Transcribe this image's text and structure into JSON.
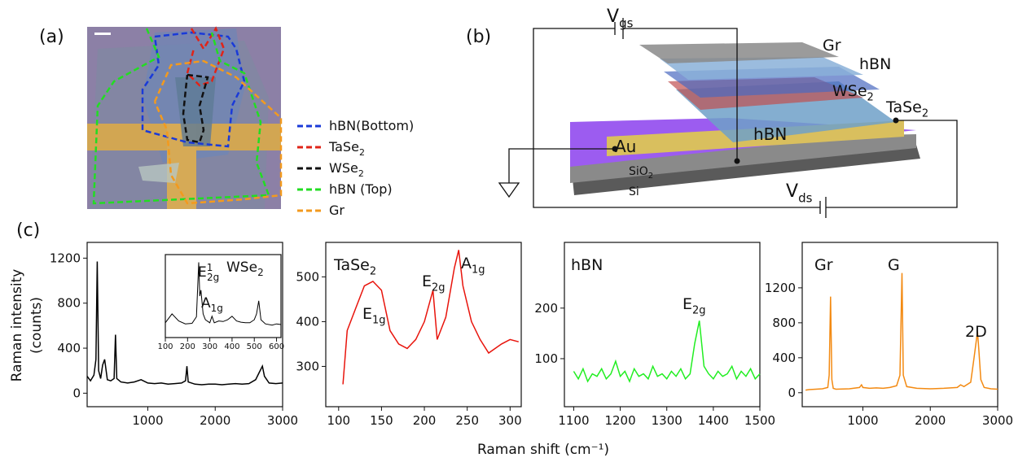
{
  "panel_labels": [
    "(a)",
    "(b)",
    "(c)"
  ],
  "panel_a": {
    "legend": [
      {
        "text": "hBN(Bottom)",
        "color": "#1a3ad8"
      },
      {
        "text": "TaSe",
        "sub": "2",
        "color": "#e02418"
      },
      {
        "text": "WSe",
        "sub": "2",
        "color": "#111111"
      },
      {
        "text": "hBN (Top)",
        "color": "#22dd22"
      },
      {
        "text": "Gr",
        "color": "#f39a1e"
      }
    ]
  },
  "panel_b": {
    "labels": [
      {
        "text": "V",
        "sub": "gs"
      },
      {
        "text": "Gr"
      },
      {
        "text": "hBN"
      },
      {
        "text": "WSe",
        "sub": "2"
      },
      {
        "text": "TaSe",
        "sub": "2"
      },
      {
        "text": "Au"
      },
      {
        "text": "hBN"
      },
      {
        "text": "SiO",
        "sub": "2"
      },
      {
        "text": "Si"
      },
      {
        "text": "V",
        "sub": "ds"
      }
    ]
  },
  "ylabel": [
    "Raman intensity",
    "(counts)"
  ],
  "xlabel": "Raman shift (cm⁻¹)",
  "chart_data": [
    {
      "type": "line",
      "xlim": [
        100,
        3000
      ],
      "ylim": [
        -120,
        1340
      ],
      "xticks": [
        1000,
        2000,
        3000
      ],
      "yticks": [
        0,
        400,
        800,
        1200
      ],
      "x": [
        100,
        150,
        200,
        230,
        250,
        270,
        300,
        330,
        360,
        400,
        450,
        500,
        520,
        540,
        600,
        700,
        800,
        900,
        1000,
        1100,
        1200,
        1300,
        1400,
        1500,
        1560,
        1580,
        1600,
        1700,
        1800,
        1900,
        2000,
        2100,
        2200,
        2300,
        2400,
        2500,
        2600,
        2650,
        2700,
        2730,
        2800,
        2900,
        3000
      ],
      "series": [
        {
          "color": "#000000",
          "values": [
            150,
            110,
            160,
            300,
            1170,
            200,
            130,
            250,
            300,
            120,
            110,
            130,
            520,
            130,
            100,
            90,
            100,
            120,
            90,
            85,
            90,
            80,
            85,
            90,
            110,
            240,
            100,
            80,
            75,
            80,
            80,
            75,
            80,
            85,
            80,
            85,
            120,
            180,
            240,
            150,
            90,
            85,
            90
          ]
        }
      ],
      "annotations": []
    },
    {
      "type": "line",
      "xlim": [
        100,
        620
      ],
      "ylim": [
        -100,
        1300
      ],
      "xticks": [
        100,
        200,
        300,
        400,
        500,
        600
      ],
      "x": [
        100,
        130,
        160,
        190,
        220,
        240,
        250,
        255,
        260,
        270,
        280,
        300,
        310,
        320,
        340,
        360,
        380,
        400,
        420,
        440,
        460,
        480,
        500,
        510,
        520,
        530,
        550,
        580,
        600,
        620
      ],
      "series": [
        {
          "color": "#000000",
          "values": [
            150,
            300,
            180,
            130,
            140,
            250,
            1170,
            600,
            700,
            300,
            200,
            150,
            260,
            150,
            180,
            170,
            200,
            260,
            180,
            160,
            150,
            150,
            200,
            300,
            520,
            200,
            130,
            110,
            130,
            120
          ]
        }
      ],
      "annotations": [
        {
          "text": "E",
          "sup": "1",
          "sub": "2g"
        },
        {
          "text": "WSe",
          "sub": "2"
        },
        {
          "text": "A",
          "sub": "1g"
        }
      ]
    },
    {
      "type": "line",
      "xlim": [
        85,
        313
      ],
      "ylim": [
        210,
        577
      ],
      "xticks": [
        100,
        150,
        200,
        250,
        300
      ],
      "yticks": [
        300,
        400,
        500
      ],
      "x": [
        105,
        110,
        120,
        130,
        140,
        150,
        160,
        170,
        180,
        190,
        200,
        210,
        215,
        225,
        235,
        240,
        245,
        255,
        265,
        275,
        290,
        300,
        310
      ],
      "series": [
        {
          "color": "#e8140c",
          "values": [
            260,
            380,
            430,
            480,
            490,
            470,
            380,
            350,
            340,
            360,
            400,
            470,
            360,
            410,
            520,
            560,
            480,
            400,
            360,
            330,
            350,
            360,
            355
          ]
        }
      ],
      "annotations": [
        {
          "text": "TaSe",
          "sub": "2"
        },
        {
          "text": "E",
          "sub": "1g"
        },
        {
          "text": "E",
          "sub": "2g"
        },
        {
          "text": "A",
          "sub": "1g"
        }
      ]
    },
    {
      "type": "line",
      "xlim": [
        1080,
        1500
      ],
      "ylim": [
        5,
        330
      ],
      "xticks": [
        1100,
        1200,
        1300,
        1400,
        1500
      ],
      "yticks": [
        100,
        200
      ],
      "x": [
        1100,
        1110,
        1120,
        1130,
        1140,
        1150,
        1160,
        1170,
        1180,
        1190,
        1200,
        1210,
        1220,
        1230,
        1240,
        1250,
        1260,
        1270,
        1280,
        1290,
        1300,
        1310,
        1320,
        1330,
        1340,
        1350,
        1360,
        1370,
        1380,
        1390,
        1400,
        1410,
        1420,
        1430,
        1440,
        1450,
        1460,
        1470,
        1480,
        1490,
        1500
      ],
      "series": [
        {
          "color": "#22ee22",
          "values": [
            75,
            60,
            80,
            55,
            70,
            65,
            80,
            60,
            70,
            95,
            65,
            75,
            55,
            80,
            65,
            70,
            60,
            85,
            65,
            70,
            60,
            75,
            65,
            80,
            60,
            70,
            130,
            175,
            85,
            70,
            60,
            75,
            65,
            70,
            85,
            60,
            75,
            65,
            80,
            60,
            70
          ]
        }
      ],
      "annotations": [
        {
          "text": "hBN"
        },
        {
          "text": "E",
          "sub": "2g"
        }
      ]
    },
    {
      "type": "line",
      "xlim": [
        100,
        3000
      ],
      "ylim": [
        -160,
        1720
      ],
      "xticks": [
        1000,
        2000,
        3000
      ],
      "yticks": [
        0,
        400,
        800,
        1200
      ],
      "x": [
        150,
        200,
        300,
        400,
        480,
        500,
        520,
        540,
        560,
        600,
        800,
        950,
        980,
        1000,
        1100,
        1200,
        1300,
        1400,
        1500,
        1550,
        1580,
        1600,
        1650,
        1800,
        2000,
        2200,
        2400,
        2450,
        2500,
        2600,
        2650,
        2700,
        2720,
        2750,
        2800,
        2900,
        3000
      ],
      "series": [
        {
          "color": "#f38a12",
          "values": [
            30,
            35,
            40,
            45,
            60,
            200,
            1100,
            150,
            50,
            40,
            45,
            60,
            90,
            60,
            50,
            55,
            50,
            60,
            80,
            200,
            1370,
            200,
            70,
            50,
            45,
            50,
            60,
            90,
            70,
            120,
            400,
            700,
            500,
            150,
            60,
            45,
            40
          ]
        }
      ],
      "annotations": [
        {
          "text": "Gr"
        },
        {
          "text": "G"
        },
        {
          "text": "2D"
        }
      ]
    }
  ]
}
